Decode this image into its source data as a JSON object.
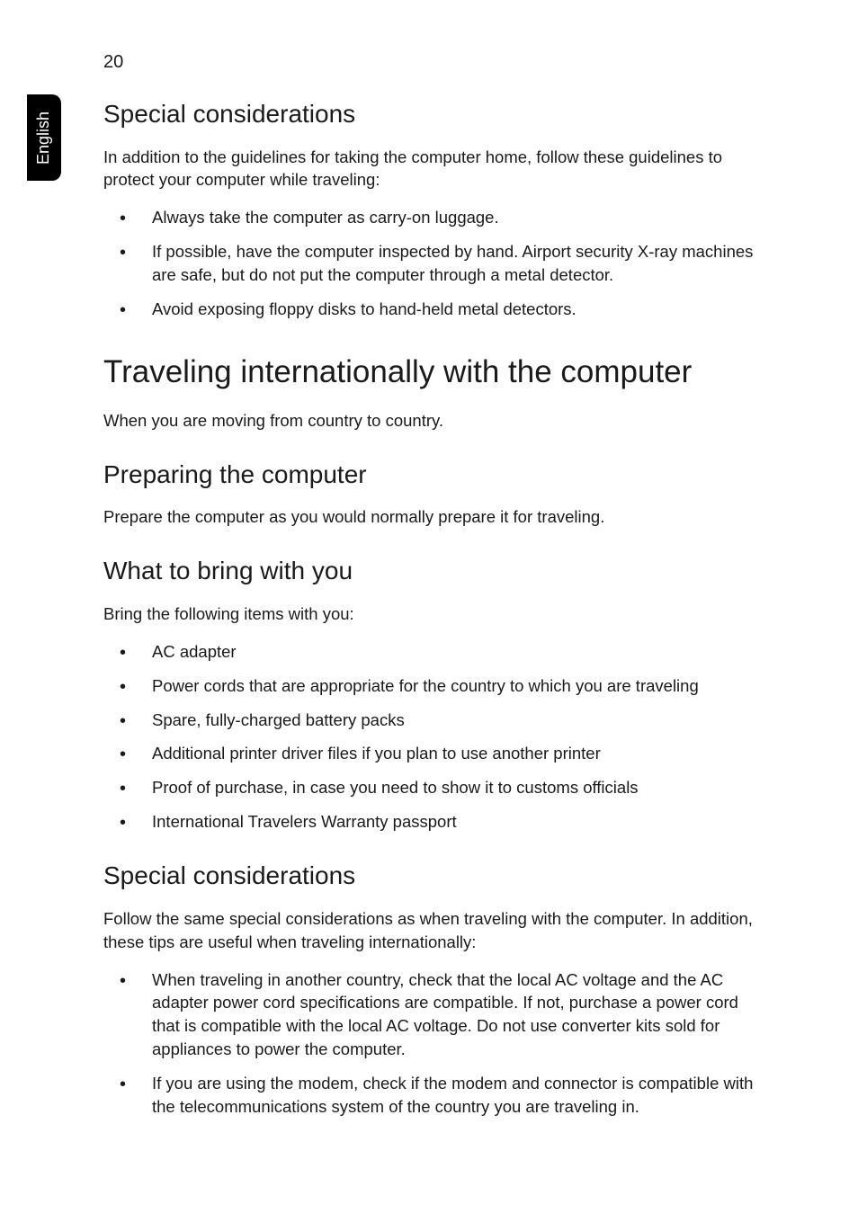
{
  "page_number": "20",
  "side_tab": "English",
  "sections": {
    "s1": {
      "heading": "Special considerations",
      "para": "In addition to the guidelines for taking the computer home, follow these guidelines to protect your computer while traveling:",
      "items": [
        "Always take the computer as carry-on luggage.",
        "If possible, have the computer inspected by hand. Airport security X-ray machines are safe, but do not put the computer through a metal detector.",
        "Avoid exposing floppy disks to hand-held metal detectors."
      ]
    },
    "s2": {
      "heading": "Traveling internationally with the computer",
      "para": "When you are moving from country to country."
    },
    "s3": {
      "heading": "Preparing the computer",
      "para": "Prepare the computer as you would normally prepare it for traveling."
    },
    "s4": {
      "heading": "What to bring with you",
      "para": "Bring the following items with you:",
      "items": [
        "AC adapter",
        "Power cords that are appropriate for the country to which you are traveling",
        "Spare, fully-charged battery packs",
        "Additional printer driver files if you plan to use another printer",
        "Proof of purchase, in case you need to show it to customs officials",
        "International Travelers Warranty passport"
      ]
    },
    "s5": {
      "heading": "Special considerations",
      "para": "Follow the same special considerations as when traveling with the computer. In addition, these tips are useful when traveling internationally:",
      "items": [
        "When traveling in another country, check that the local AC voltage and the AC adapter power cord specifications are compatible. If not, purchase a power cord that is compatible with the local AC voltage. Do not use converter kits sold for appliances to power the computer.",
        "If you are using the modem, check if the modem and connector is compatible with the telecommunications system of the country you are traveling in."
      ]
    }
  },
  "colors": {
    "background": "#ffffff",
    "text": "#1a1a1a",
    "tab_bg": "#000000",
    "tab_text": "#ffffff"
  },
  "typography": {
    "body_font": "Segoe UI / Lucida Sans",
    "page_number_size": 20,
    "h1_size": 35,
    "h2_size": 28,
    "body_size": 18.5,
    "side_tab_size": 18
  }
}
